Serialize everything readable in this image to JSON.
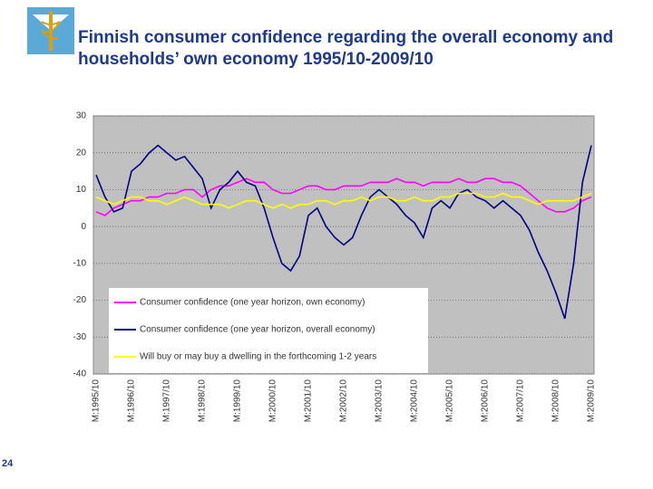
{
  "page_number": "24",
  "chart_data": {
    "type": "line",
    "title": "Finnish consumer confidence regarding the overall economy and households’ own economy 1995/10-2009/10",
    "categories": [
      "M:1995/10",
      null,
      null,
      null,
      "M:1996/10",
      null,
      null,
      null,
      "M:1997/10",
      null,
      null,
      null,
      "M:1998/10",
      null,
      null,
      null,
      "M:1999/10",
      null,
      null,
      null,
      "M:2000/10",
      null,
      null,
      null,
      "M:2001/10",
      null,
      null,
      null,
      "M:2002/10",
      null,
      null,
      null,
      "M:2003/10",
      null,
      null,
      null,
      "M:2004/10",
      null,
      null,
      null,
      "M:2005/10",
      null,
      null,
      null,
      "M:2006/10",
      null,
      null,
      null,
      "M:2007/10",
      null,
      null,
      null,
      "M:2008/10",
      null,
      null,
      null,
      "M:2009/10"
    ],
    "series": [
      {
        "name": "Consumer confidence (one year horizon, own economy)",
        "color": "#ff00ff",
        "values": [
          4,
          3,
          5,
          6,
          7,
          7,
          8,
          8,
          9,
          9,
          10,
          10,
          8,
          10,
          11,
          11,
          12,
          13,
          12,
          12,
          10,
          9,
          9,
          10,
          11,
          11,
          10,
          10,
          11,
          11,
          11,
          12,
          12,
          12,
          13,
          12,
          12,
          11,
          12,
          12,
          12,
          13,
          12,
          12,
          13,
          13,
          12,
          12,
          11,
          9,
          7,
          5,
          4,
          4,
          5,
          7,
          8
        ]
      },
      {
        "name": "Consumer confidence (one year horizon, overall economy)",
        "color": "#000080",
        "values": [
          14,
          8,
          4,
          5,
          15,
          17,
          20,
          22,
          20,
          18,
          19,
          16,
          13,
          5,
          10,
          12,
          15,
          12,
          11,
          5,
          -3,
          -10,
          -12,
          -8,
          3,
          5,
          0,
          -3,
          -5,
          -3,
          3,
          8,
          10,
          8,
          6,
          3,
          1,
          -3,
          5,
          7,
          5,
          9,
          10,
          8,
          7,
          5,
          7,
          5,
          3,
          -1,
          -7,
          -12,
          -18,
          -25,
          -10,
          12,
          22
        ]
      },
      {
        "name": "Will buy or may buy a dwelling in the forthcoming 1-2 years",
        "color": "#ffff00",
        "values": [
          8,
          7,
          6,
          7,
          8,
          8,
          7,
          7,
          6,
          7,
          8,
          7,
          6,
          6,
          6,
          5,
          6,
          7,
          7,
          6,
          5,
          6,
          5,
          6,
          6,
          7,
          7,
          6,
          7,
          7,
          8,
          7,
          8,
          8,
          7,
          7,
          8,
          7,
          7,
          8,
          8,
          9,
          9,
          9,
          8,
          8,
          9,
          8,
          8,
          7,
          6,
          7,
          7,
          7,
          7,
          8,
          9
        ]
      }
    ],
    "ylim": [
      -40,
      30
    ],
    "yticks": [
      -40,
      -30,
      -20,
      -10,
      0,
      10,
      20,
      30
    ],
    "grid": true
  }
}
